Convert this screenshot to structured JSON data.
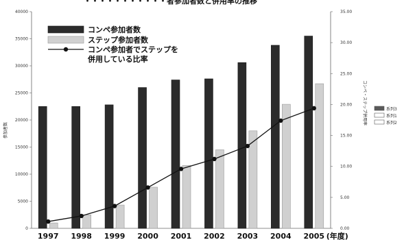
{
  "chart_data": {
    "type": "bar",
    "title": "・・・・・・・・・・・者参加者数と併用率の推移",
    "categories": [
      "1997",
      "1998",
      "1999",
      "2000",
      "2001",
      "2002",
      "2003",
      "2004",
      "2005"
    ],
    "x_unit_suffix": "(年度)",
    "ylabel_left": "参加者数",
    "ylabel_right": "コンペ・ステップ併用率",
    "ylim_left": [
      0,
      40000
    ],
    "ylim_right": [
      0,
      35
    ],
    "yticks_left": [
      "0",
      "5000",
      "10000",
      "15000",
      "20000",
      "25000",
      "30000",
      "35000",
      "40000"
    ],
    "yticks_right": [
      "0.00",
      "5.00",
      "10.00",
      "15.00",
      "20.00",
      "25.00",
      "30.00",
      "35.00"
    ],
    "series": [
      {
        "name": "コンペ参加者数",
        "kind": "bar",
        "axis": "left",
        "color": "#2b2b2b",
        "values": [
          22500,
          22500,
          22800,
          26000,
          27400,
          27600,
          30600,
          33800,
          35500
        ]
      },
      {
        "name": "ステップ参加者数",
        "kind": "bar",
        "axis": "left",
        "color": "#d0d0d0",
        "values": [
          1000,
          2500,
          4300,
          7600,
          11600,
          14500,
          18000,
          22900,
          26700
        ]
      },
      {
        "name": "コンペ参加者でステップを\n併用している比率",
        "kind": "line",
        "axis": "right",
        "color": "#111111",
        "values": [
          1.1,
          2.0,
          3.6,
          6.6,
          9.6,
          11.2,
          13.3,
          17.4,
          19.4
        ]
      }
    ],
    "legend_position": "top-left",
    "side_legend": [
      {
        "label": "系列3",
        "color": "#5a5a5a"
      },
      {
        "label": "系列1",
        "color": "#ffffff"
      },
      {
        "label": "系列2",
        "color": "#ffffff"
      }
    ],
    "grid": false
  }
}
